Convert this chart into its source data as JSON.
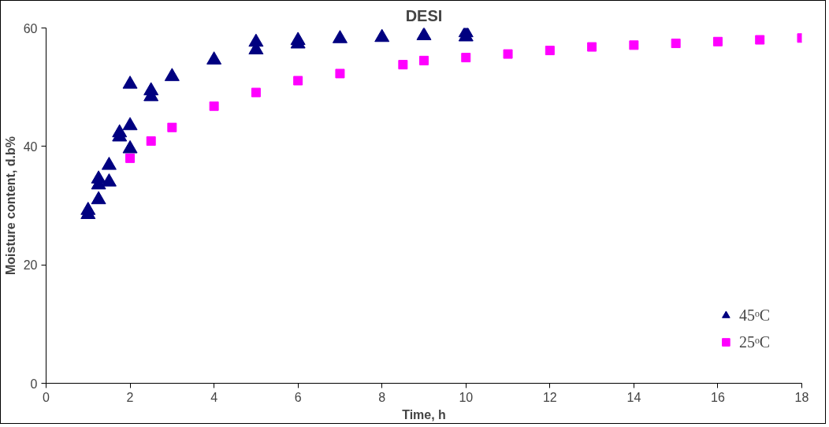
{
  "chart_data": {
    "type": "scatter",
    "title": "DESI",
    "xlabel": "Time, h",
    "ylabel": "Moisture content, d.b%",
    "xlim": [
      0,
      18
    ],
    "xticks": [
      0,
      2,
      4,
      6,
      8,
      10,
      12,
      14,
      16,
      18
    ],
    "ylim": [
      0,
      60
    ],
    "yticks": [
      0,
      20,
      40,
      60
    ],
    "grid": false,
    "legend": "bottom right",
    "series": [
      {
        "name": "45ᵒC",
        "color": "#000080",
        "marker": "triangle",
        "x": [
          1,
          1,
          1.25,
          1.25,
          1.25,
          1.5,
          1.5,
          1.75,
          1.75,
          2,
          2,
          2,
          2.5,
          2.5,
          3,
          4,
          5,
          5,
          6,
          6,
          7,
          8,
          9,
          10,
          10
        ],
        "values": [
          28.5,
          29.2,
          31,
          33.5,
          34.5,
          34,
          36.8,
          41.6,
          42.3,
          39.6,
          43.5,
          50.5,
          48.4,
          49.4,
          51.8,
          54.6,
          56.3,
          57.6,
          57.3,
          57.9,
          58.2,
          58.4,
          58.7,
          58.5,
          59.2
        ]
      },
      {
        "name": "25ᵒC",
        "color": "#ff00ff",
        "marker": "square",
        "x": [
          2,
          2.5,
          3,
          4,
          5,
          6,
          7,
          8.5,
          9,
          10,
          11,
          12,
          13,
          14,
          15,
          16,
          17,
          18
        ],
        "values": [
          38,
          40.9,
          43.2,
          46.8,
          49.1,
          51.1,
          52.3,
          53.8,
          54.5,
          55,
          55.6,
          56.2,
          56.8,
          57.1,
          57.4,
          57.7,
          58,
          58.3
        ]
      }
    ]
  }
}
